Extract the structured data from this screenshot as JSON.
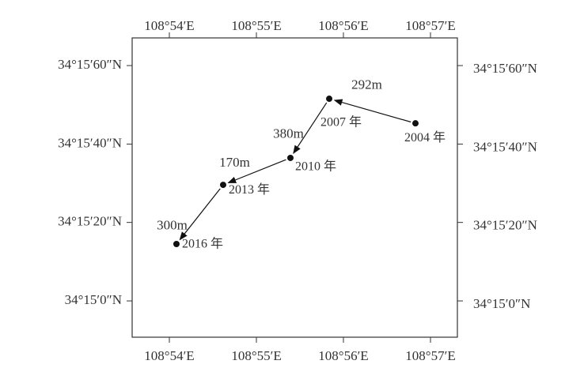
{
  "chart_data": {
    "type": "scatter",
    "x": [
      108.94712,
      108.93061,
      108.92318,
      108.9103,
      108.90136
    ],
    "values": [
      34.26258,
      34.26432,
      34.26013,
      34.25822,
      34.25403
    ],
    "labels": [
      "2004 年",
      "2007 年",
      "2010 年",
      "2013 年",
      "2016 年"
    ],
    "annotations": [
      "292m",
      "380m",
      "170m",
      "300m"
    ],
    "color": "#111111",
    "xlim": [
      108.89288,
      108.95515
    ],
    "ylim": [
      34.24743,
      34.26863
    ],
    "xticks": [
      {
        "value": 108.9,
        "label": "108°54′E"
      },
      {
        "value": 108.91667,
        "label": "108°55′E"
      },
      {
        "value": 108.93333,
        "label": "108°56′E"
      },
      {
        "value": 108.95,
        "label": "108°57′E"
      }
    ],
    "yticks": [
      {
        "value": 34.25,
        "label": "34°15′0″N"
      },
      {
        "value": 34.25556,
        "label": "34°15′20″N"
      },
      {
        "value": 34.26111,
        "label": "34°15′40″N"
      },
      {
        "value": 34.26667,
        "label": "34°15′60″N"
      }
    ]
  }
}
